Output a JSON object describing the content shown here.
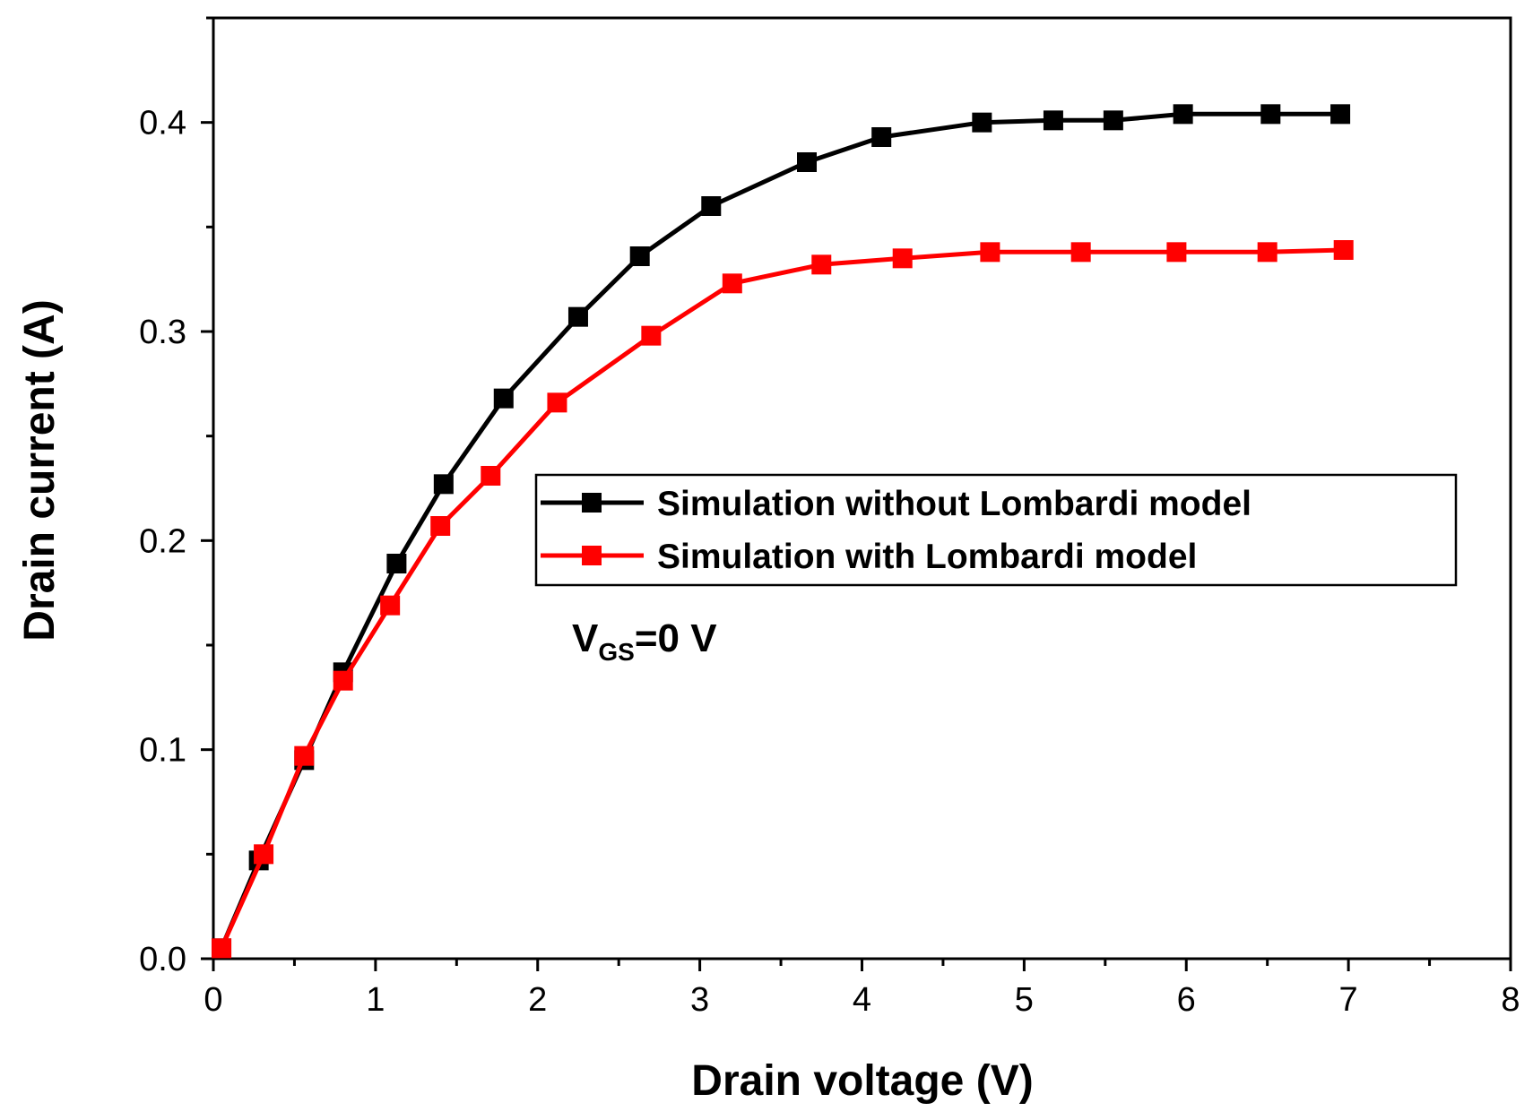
{
  "chart_data": {
    "type": "line",
    "title": "",
    "xlabel": "Drain voltage (V)",
    "ylabel": "Drain current (A)",
    "xlim": [
      0,
      8
    ],
    "ylim": [
      0,
      0.45
    ],
    "xticks": [
      "0",
      "1",
      "2",
      "3",
      "4",
      "5",
      "6",
      "7",
      "8"
    ],
    "yticks": [
      "0.0",
      "0.1",
      "0.2",
      "0.3",
      "0.4"
    ],
    "grid": false,
    "legend_position": "center-right",
    "annotation": {
      "main": "V",
      "subscript": "GS",
      "suffix": "=0 V"
    },
    "series": [
      {
        "name": "Simulation without Lombardi model",
        "color": "#000000",
        "marker": "square",
        "x": [
          0.05,
          0.28,
          0.56,
          0.8,
          1.13,
          1.42,
          1.79,
          2.25,
          2.63,
          3.07,
          3.66,
          4.12,
          4.74,
          5.18,
          5.55,
          5.98,
          6.52,
          6.95
        ],
        "y": [
          0.005,
          0.047,
          0.095,
          0.137,
          0.189,
          0.227,
          0.268,
          0.307,
          0.336,
          0.36,
          0.381,
          0.393,
          0.4,
          0.401,
          0.401,
          0.404,
          0.404,
          0.404
        ]
      },
      {
        "name": "Simulation with Lombardi model",
        "color": "#ff0000",
        "marker": "square",
        "x": [
          0.05,
          0.31,
          0.56,
          0.8,
          1.09,
          1.4,
          1.71,
          2.12,
          2.7,
          3.2,
          3.75,
          4.25,
          4.79,
          5.35,
          5.94,
          6.5,
          6.97
        ],
        "y": [
          0.005,
          0.05,
          0.097,
          0.133,
          0.169,
          0.207,
          0.231,
          0.266,
          0.298,
          0.323,
          0.332,
          0.335,
          0.338,
          0.338,
          0.338,
          0.338,
          0.339
        ]
      }
    ]
  }
}
